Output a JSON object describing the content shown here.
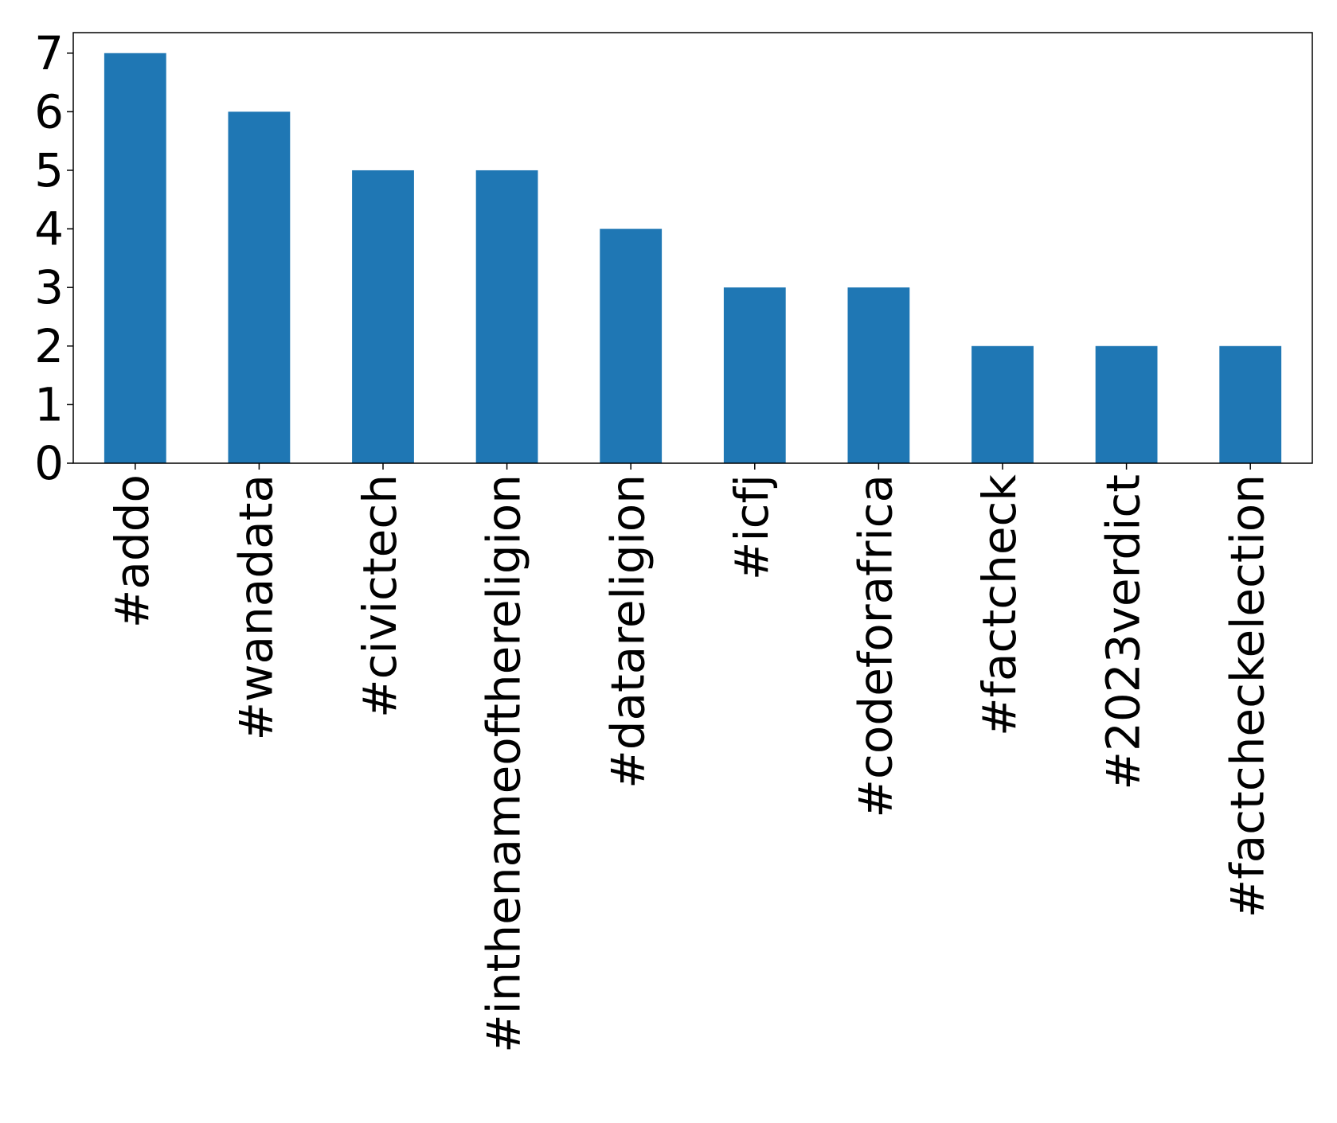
{
  "chart_data": {
    "type": "bar",
    "categories": [
      "#addo",
      "#wanadata",
      "#civictech",
      "#inthenameofthereligion",
      "#datareligion",
      "#icfj",
      "#codeforafrica",
      "#factcheck",
      "#2023verdict",
      "#factcheckelection"
    ],
    "values": [
      7,
      6,
      5,
      5,
      4,
      3,
      3,
      2,
      2,
      2
    ],
    "color": "#1f77b4",
    "ylim": [
      0,
      7.35
    ],
    "yticks": [
      0,
      1,
      2,
      3,
      4,
      5,
      6,
      7
    ],
    "grid": false
  }
}
